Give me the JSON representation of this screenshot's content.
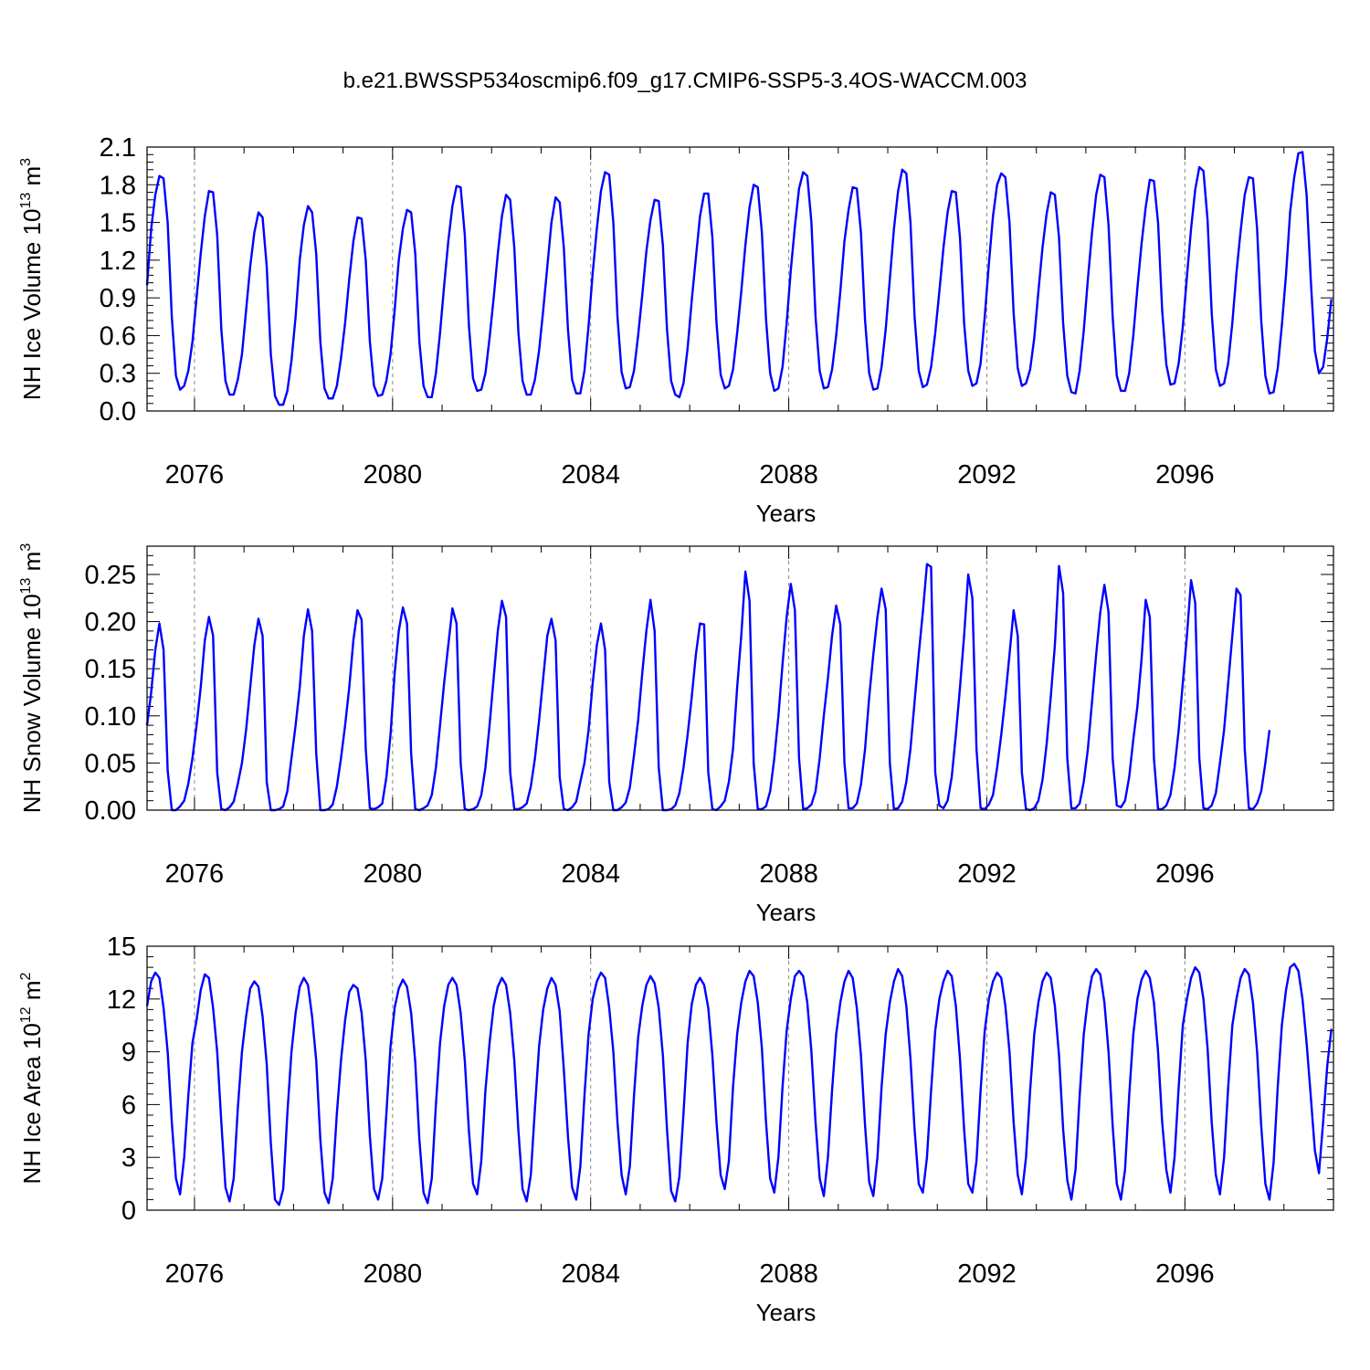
{
  "title": "b.e21.BWSSP534oscmip6.f09_g17.CMIP6-SSP5-3.4OS-WACCM.003",
  "line_color": "#0000ff",
  "chart_data": [
    {
      "type": "line",
      "ylabel": "NH Ice Volume 10",
      "ylabel_exp": "13",
      "ylabel_unit": " m",
      "ylabel_unit_exp": "3",
      "xlabel": "Years",
      "xlim": [
        2075.042,
        2099.0
      ],
      "ylim": [
        0.0,
        2.1
      ],
      "yticks": [
        "0.0",
        "0.3",
        "0.6",
        "0.9",
        "1.2",
        "1.5",
        "1.8",
        "2.1"
      ],
      "ytick_values": [
        0.0,
        0.3,
        0.6,
        0.9,
        1.2,
        1.5,
        1.8,
        2.1
      ],
      "xticks": [
        "2076",
        "2080",
        "2084",
        "2088",
        "2092",
        "2096"
      ],
      "xtick_values": [
        2076,
        2080,
        2084,
        2088,
        2092,
        2096
      ],
      "start_year": 2075.042,
      "step_years": 0.08333,
      "series": [
        {
          "values": [
            1.0,
            1.45,
            1.72,
            1.87,
            1.85,
            1.5,
            0.75,
            0.28,
            0.17,
            0.2,
            0.32,
            0.55,
            0.9,
            1.25,
            1.55,
            1.75,
            1.74,
            1.4,
            0.65,
            0.24,
            0.13,
            0.13,
            0.25,
            0.45,
            0.8,
            1.15,
            1.42,
            1.58,
            1.54,
            1.15,
            0.45,
            0.12,
            0.05,
            0.05,
            0.16,
            0.4,
            0.75,
            1.2,
            1.48,
            1.63,
            1.58,
            1.25,
            0.55,
            0.18,
            0.1,
            0.1,
            0.2,
            0.42,
            0.7,
            1.05,
            1.35,
            1.54,
            1.53,
            1.2,
            0.55,
            0.2,
            0.12,
            0.13,
            0.24,
            0.45,
            0.8,
            1.2,
            1.45,
            1.6,
            1.58,
            1.25,
            0.55,
            0.2,
            0.11,
            0.11,
            0.3,
            0.62,
            1.0,
            1.35,
            1.63,
            1.79,
            1.78,
            1.4,
            0.68,
            0.26,
            0.16,
            0.17,
            0.3,
            0.58,
            0.9,
            1.25,
            1.55,
            1.72,
            1.68,
            1.3,
            0.62,
            0.24,
            0.13,
            0.13,
            0.25,
            0.48,
            0.8,
            1.15,
            1.5,
            1.7,
            1.66,
            1.3,
            0.65,
            0.25,
            0.14,
            0.14,
            0.32,
            0.68,
            1.1,
            1.45,
            1.75,
            1.9,
            1.88,
            1.5,
            0.75,
            0.31,
            0.18,
            0.19,
            0.32,
            0.6,
            0.92,
            1.27,
            1.52,
            1.68,
            1.67,
            1.32,
            0.65,
            0.24,
            0.13,
            0.11,
            0.22,
            0.5,
            0.88,
            1.22,
            1.55,
            1.73,
            1.73,
            1.38,
            0.7,
            0.29,
            0.18,
            0.2,
            0.33,
            0.62,
            0.95,
            1.32,
            1.62,
            1.8,
            1.78,
            1.42,
            0.73,
            0.3,
            0.16,
            0.18,
            0.35,
            0.7,
            1.12,
            1.47,
            1.77,
            1.9,
            1.87,
            1.5,
            0.75,
            0.32,
            0.18,
            0.19,
            0.33,
            0.6,
            0.95,
            1.35,
            1.6,
            1.78,
            1.77,
            1.42,
            0.72,
            0.3,
            0.17,
            0.18,
            0.35,
            0.65,
            1.05,
            1.45,
            1.75,
            1.92,
            1.89,
            1.5,
            0.75,
            0.32,
            0.19,
            0.21,
            0.35,
            0.62,
            0.95,
            1.3,
            1.58,
            1.75,
            1.74,
            1.38,
            0.7,
            0.32,
            0.2,
            0.22,
            0.38,
            0.75,
            1.17,
            1.55,
            1.8,
            1.89,
            1.86,
            1.5,
            0.78,
            0.34,
            0.2,
            0.22,
            0.33,
            0.58,
            0.95,
            1.3,
            1.57,
            1.74,
            1.72,
            1.38,
            0.7,
            0.28,
            0.15,
            0.14,
            0.32,
            0.64,
            1.05,
            1.42,
            1.72,
            1.88,
            1.86,
            1.48,
            0.75,
            0.28,
            0.16,
            0.16,
            0.3,
            0.6,
            0.98,
            1.33,
            1.62,
            1.84,
            1.83,
            1.5,
            0.8,
            0.37,
            0.21,
            0.22,
            0.38,
            0.67,
            1.07,
            1.45,
            1.76,
            1.94,
            1.91,
            1.52,
            0.78,
            0.33,
            0.2,
            0.22,
            0.38,
            0.7,
            1.1,
            1.43,
            1.72,
            1.86,
            1.85,
            1.45,
            0.72,
            0.28,
            0.14,
            0.15,
            0.34,
            0.68,
            1.08,
            1.58,
            1.86,
            2.05,
            2.06,
            1.72,
            1.05,
            0.48,
            0.3,
            0.35,
            0.58,
            0.89
          ]
        }
      ]
    },
    {
      "type": "line",
      "ylabel": "NH Snow Volume 10",
      "ylabel_exp": "13",
      "ylabel_unit": " m",
      "ylabel_unit_exp": "3",
      "xlabel": "Years",
      "xlim": [
        2075.042,
        2099.0
      ],
      "ylim": [
        0.0,
        0.28
      ],
      "yticks": [
        "0.00",
        "0.05",
        "0.10",
        "0.15",
        "0.20",
        "0.25"
      ],
      "ytick_values": [
        0.0,
        0.05,
        0.1,
        0.15,
        0.2,
        0.25
      ],
      "xticks": [
        "2076",
        "2080",
        "2084",
        "2088",
        "2092",
        "2096"
      ],
      "xtick_values": [
        2076,
        2080,
        2084,
        2088,
        2092,
        2096
      ],
      "start_year": 2075.042,
      "step_years": 0.08333,
      "series": [
        {
          "values": [
            0.09,
            0.125,
            0.17,
            0.198,
            0.17,
            0.042,
            0.0,
            0.0,
            0.004,
            0.01,
            0.028,
            0.055,
            0.09,
            0.13,
            0.18,
            0.205,
            0.185,
            0.04,
            0.001,
            0.0,
            0.003,
            0.009,
            0.028,
            0.05,
            0.085,
            0.13,
            0.175,
            0.203,
            0.185,
            0.03,
            0.0,
            0.0,
            0.001,
            0.004,
            0.02,
            0.055,
            0.09,
            0.13,
            0.185,
            0.213,
            0.19,
            0.06,
            0.0,
            0.0,
            0.001,
            0.006,
            0.025,
            0.055,
            0.09,
            0.13,
            0.18,
            0.212,
            0.202,
            0.065,
            0.002,
            0.001,
            0.003,
            0.007,
            0.035,
            0.08,
            0.145,
            0.19,
            0.215,
            0.198,
            0.06,
            0.001,
            0.0,
            0.002,
            0.005,
            0.016,
            0.045,
            0.09,
            0.135,
            0.175,
            0.214,
            0.198,
            0.05,
            0.001,
            0.0,
            0.001,
            0.004,
            0.016,
            0.045,
            0.09,
            0.14,
            0.19,
            0.222,
            0.205,
            0.04,
            0.001,
            0.001,
            0.003,
            0.007,
            0.025,
            0.055,
            0.095,
            0.14,
            0.185,
            0.203,
            0.18,
            0.035,
            0.001,
            0.0,
            0.003,
            0.009,
            0.03,
            0.05,
            0.085,
            0.135,
            0.175,
            0.198,
            0.17,
            0.03,
            0.0,
            0.0,
            0.003,
            0.008,
            0.024,
            0.058,
            0.095,
            0.145,
            0.19,
            0.223,
            0.19,
            0.045,
            0.0,
            0.0,
            0.001,
            0.005,
            0.018,
            0.045,
            0.08,
            0.12,
            0.165,
            0.198,
            0.197,
            0.04,
            0.001,
            0.0,
            0.004,
            0.01,
            0.03,
            0.065,
            0.13,
            0.185,
            0.253,
            0.222,
            0.05,
            0.001,
            0.001,
            0.004,
            0.02,
            0.055,
            0.1,
            0.155,
            0.205,
            0.24,
            0.212,
            0.055,
            0.001,
            0.002,
            0.006,
            0.02,
            0.055,
            0.1,
            0.14,
            0.185,
            0.217,
            0.197,
            0.05,
            0.002,
            0.002,
            0.007,
            0.027,
            0.065,
            0.12,
            0.165,
            0.205,
            0.235,
            0.213,
            0.05,
            0.001,
            0.002,
            0.009,
            0.03,
            0.065,
            0.115,
            0.165,
            0.21,
            0.261,
            0.258,
            0.04,
            0.005,
            0.002,
            0.01,
            0.035,
            0.08,
            0.13,
            0.185,
            0.25,
            0.225,
            0.065,
            0.002,
            0.001,
            0.006,
            0.016,
            0.045,
            0.08,
            0.12,
            0.165,
            0.212,
            0.185,
            0.04,
            0.001,
            0.0,
            0.002,
            0.01,
            0.032,
            0.07,
            0.12,
            0.175,
            0.259,
            0.23,
            0.055,
            0.002,
            0.002,
            0.007,
            0.03,
            0.065,
            0.115,
            0.165,
            0.21,
            0.239,
            0.21,
            0.055,
            0.005,
            0.003,
            0.01,
            0.035,
            0.075,
            0.11,
            0.16,
            0.223,
            0.205,
            0.055,
            0.001,
            0.001,
            0.005,
            0.016,
            0.045,
            0.085,
            0.135,
            0.185,
            0.244,
            0.22,
            0.055,
            0.002,
            0.001,
            0.005,
            0.018,
            0.05,
            0.085,
            0.135,
            0.185,
            0.235,
            0.228,
            0.065,
            0.002,
            0.001,
            0.007,
            0.02,
            0.05,
            0.085
          ]
        }
      ]
    },
    {
      "type": "line",
      "ylabel": "NH Ice Area 10",
      "ylabel_exp": "12",
      "ylabel_unit": " m",
      "ylabel_unit_exp": "2",
      "xlabel": "Years",
      "xlim": [
        2075.042,
        2099.0
      ],
      "ylim": [
        0,
        15
      ],
      "yticks": [
        "0",
        "3",
        "6",
        "9",
        "12",
        "15"
      ],
      "ytick_values": [
        0,
        3,
        6,
        9,
        12,
        15
      ],
      "xticks": [
        "2076",
        "2080",
        "2084",
        "2088",
        "2092",
        "2096"
      ],
      "xtick_values": [
        2076,
        2080,
        2084,
        2088,
        2092,
        2096
      ],
      "start_year": 2075.042,
      "step_years": 0.08333,
      "series": [
        {
          "values": [
            11.6,
            13.0,
            13.5,
            13.2,
            11.5,
            9.0,
            5.0,
            1.8,
            0.9,
            3.0,
            6.5,
            9.5,
            10.8,
            12.5,
            13.4,
            13.2,
            11.5,
            9.0,
            5.0,
            1.3,
            0.5,
            1.8,
            5.8,
            9.0,
            11.0,
            12.6,
            13.0,
            12.7,
            11.0,
            8.3,
            3.8,
            0.6,
            0.3,
            1.2,
            5.5,
            9.0,
            11.2,
            12.7,
            13.2,
            12.8,
            11.0,
            8.5,
            4.0,
            1.0,
            0.4,
            1.8,
            5.5,
            8.5,
            10.8,
            12.4,
            12.8,
            12.6,
            11.2,
            8.5,
            4.2,
            1.2,
            0.6,
            1.8,
            5.5,
            9.3,
            11.5,
            12.6,
            13.1,
            12.7,
            11.2,
            8.4,
            4.0,
            1.0,
            0.4,
            1.8,
            6.0,
            9.5,
            11.6,
            12.8,
            13.2,
            12.8,
            11.2,
            8.5,
            4.5,
            1.5,
            0.9,
            2.8,
            6.8,
            9.5,
            11.6,
            12.7,
            13.2,
            12.8,
            11.2,
            8.5,
            4.5,
            1.2,
            0.5,
            2.0,
            5.8,
            9.3,
            11.4,
            12.6,
            13.2,
            12.8,
            11.3,
            8.0,
            4.2,
            1.3,
            0.6,
            2.5,
            6.5,
            10.0,
            12.0,
            13.0,
            13.5,
            13.2,
            11.5,
            9.0,
            5.0,
            2.0,
            0.9,
            2.5,
            6.5,
            9.8,
            11.6,
            12.8,
            13.3,
            12.9,
            11.5,
            8.8,
            4.6,
            1.1,
            0.5,
            1.9,
            5.5,
            9.5,
            11.7,
            12.8,
            13.2,
            12.8,
            11.5,
            8.8,
            5.0,
            2.0,
            1.2,
            2.8,
            7.0,
            10.0,
            11.8,
            13.0,
            13.6,
            13.3,
            11.8,
            9.2,
            5.0,
            1.8,
            1.0,
            3.0,
            7.0,
            10.2,
            12.0,
            13.3,
            13.6,
            13.3,
            11.8,
            9.0,
            5.0,
            1.8,
            0.8,
            3.0,
            6.8,
            10.0,
            11.8,
            13.0,
            13.6,
            13.2,
            11.5,
            8.8,
            4.8,
            1.6,
            0.8,
            3.0,
            7.0,
            10.0,
            11.8,
            13.0,
            13.7,
            13.3,
            11.6,
            8.6,
            4.6,
            1.5,
            1.0,
            3.0,
            6.8,
            10.2,
            12.0,
            13.0,
            13.6,
            13.3,
            11.6,
            8.6,
            4.6,
            1.5,
            1.0,
            2.8,
            6.8,
            10.2,
            12.0,
            13.0,
            13.5,
            13.2,
            11.6,
            9.0,
            5.0,
            2.0,
            0.9,
            3.0,
            6.8,
            10.0,
            11.8,
            13.0,
            13.5,
            13.2,
            11.6,
            8.8,
            4.6,
            1.7,
            0.6,
            2.3,
            6.5,
            10.0,
            12.0,
            13.3,
            13.7,
            13.4,
            11.8,
            9.0,
            4.8,
            1.5,
            0.6,
            2.3,
            6.5,
            10.0,
            12.0,
            13.1,
            13.6,
            13.2,
            11.8,
            9.0,
            5.0,
            2.3,
            1.0,
            3.0,
            7.0,
            10.5,
            12.0,
            13.2,
            13.8,
            13.5,
            12.0,
            9.2,
            5.0,
            2.0,
            0.9,
            3.0,
            7.0,
            10.5,
            12.0,
            13.2,
            13.7,
            13.4,
            11.8,
            9.0,
            4.8,
            1.5,
            0.6,
            2.7,
            7.0,
            10.5,
            12.5,
            13.8,
            14.0,
            13.6,
            12.0,
            9.5,
            6.5,
            3.4,
            2.1,
            5.0,
            8.2,
            10.3
          ]
        }
      ]
    }
  ]
}
